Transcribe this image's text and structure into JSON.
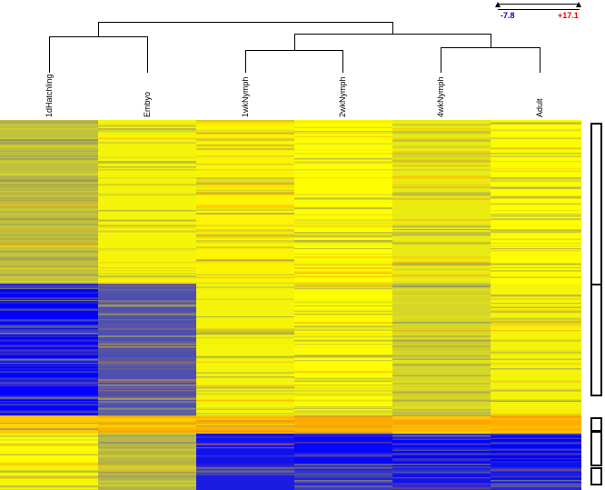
{
  "chart_data": {
    "type": "heatmap",
    "columns": [
      "1dHatchling",
      "Embyo",
      "1wkNymph",
      "2wkNymph",
      "4wkNymph",
      "Adult"
    ],
    "color_scale": {
      "min": -7.8,
      "max": 17.1,
      "min_label": "-7.8",
      "max_label": "+17.1",
      "colors": [
        "#0000ff",
        "#ffff00",
        "#ff0000"
      ]
    },
    "dendrogram": "((1dHatchling,Embyo),((1wkNymph,2wkNymph),(4wkNymph,Adult)))",
    "row_clusters": [
      {
        "color": "#ee77ee",
        "values": [
          1.5,
          4.0,
          5.0,
          4.5,
          3.5,
          4.5
        ]
      },
      {
        "color": "#22eeee",
        "values": [
          -7.8,
          -4.0,
          4.0,
          4.5,
          2.5,
          4.0
        ]
      },
      {
        "color": "#ee77ee",
        "values": [
          7.0,
          8.0,
          8.5,
          8.5,
          8.0,
          8.5
        ]
      },
      {
        "color": "#00ee00",
        "values": [
          4.5,
          1.0,
          -7.0,
          -7.5,
          -7.8,
          -7.8
        ]
      },
      {
        "color": "#c8c8c8",
        "values": [
          4.0,
          2.0,
          -6.5,
          -6.0,
          -7.0,
          -7.0
        ]
      }
    ]
  }
}
